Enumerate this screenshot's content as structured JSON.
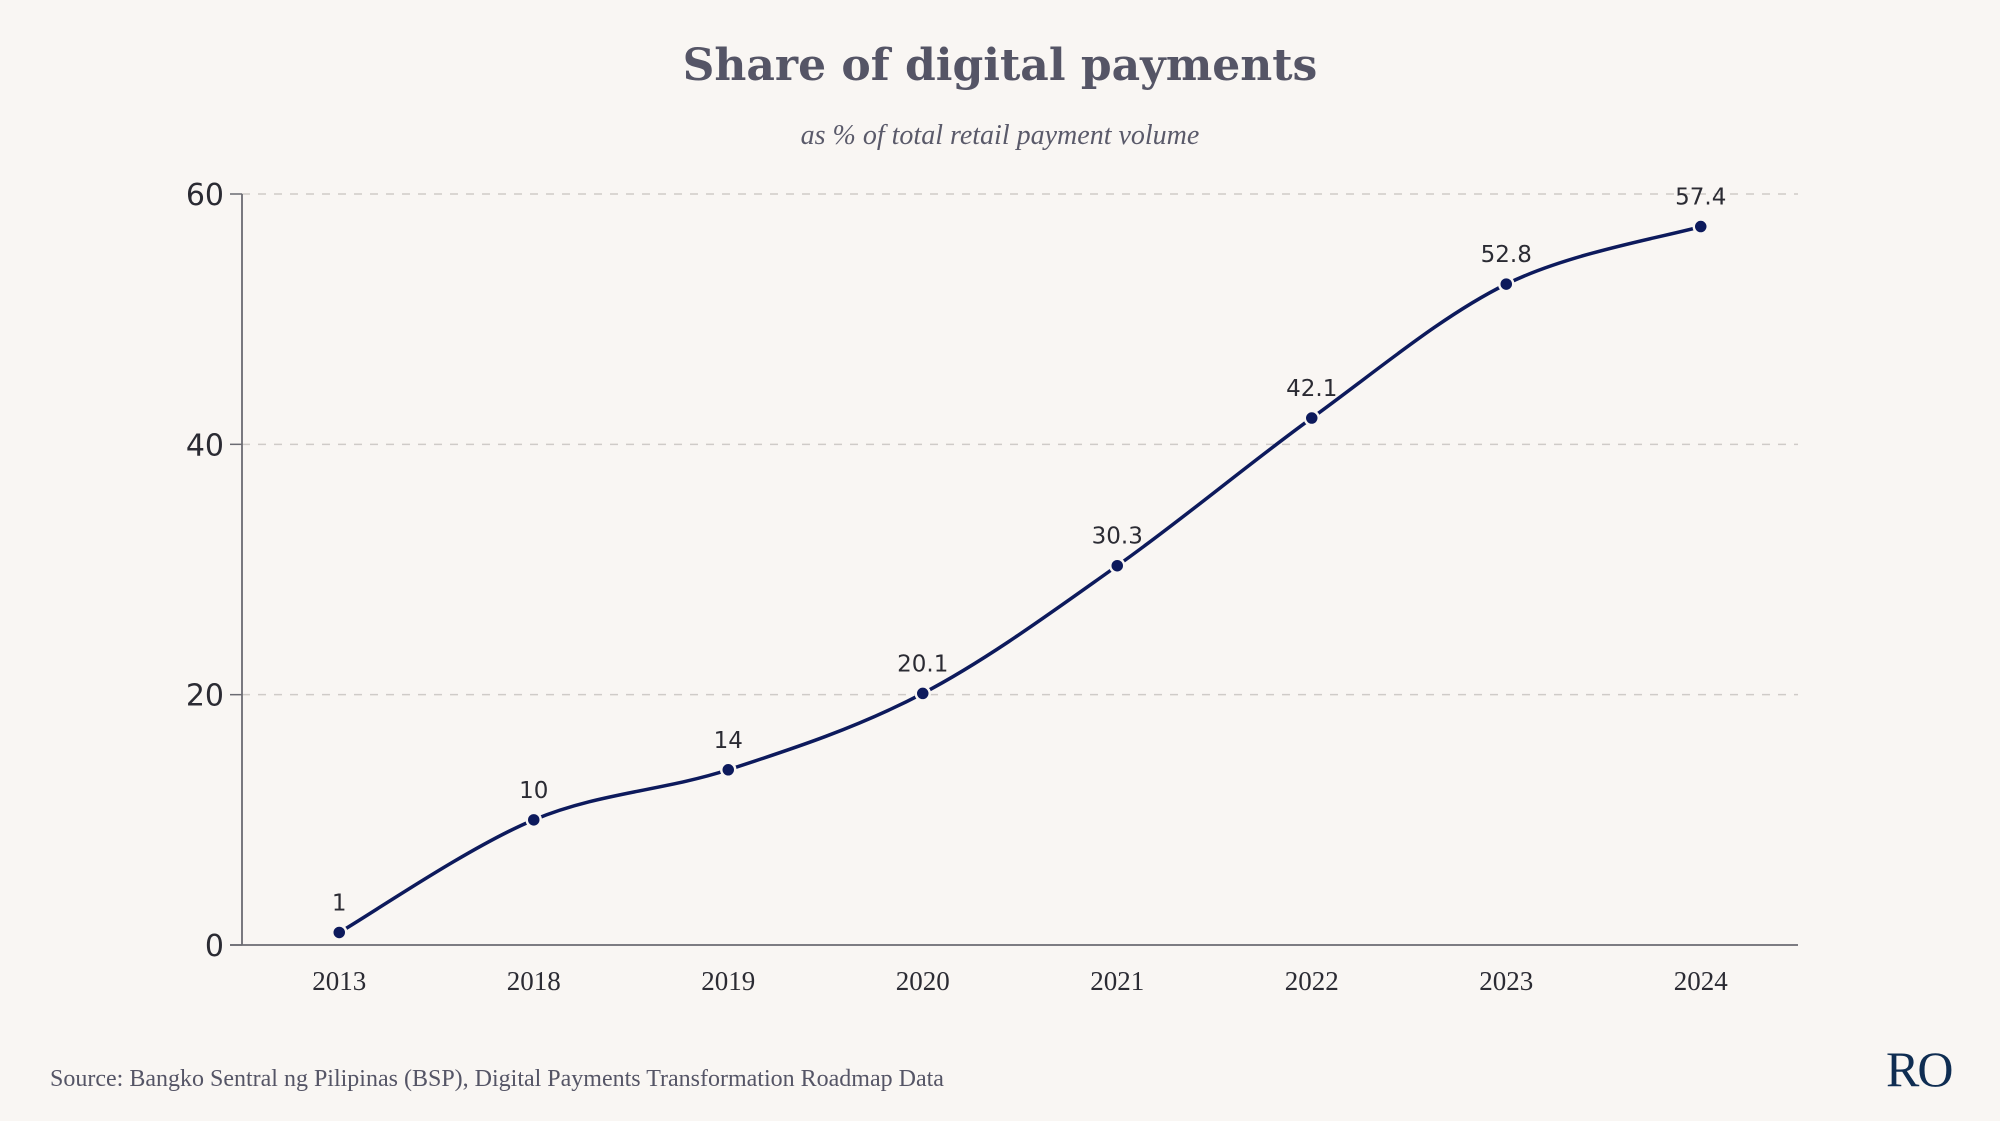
{
  "chart_data": {
    "type": "line",
    "title": "Share of digital payments",
    "subtitle": "as % of total retail payment volume",
    "xlabel": "",
    "ylabel": "",
    "categories": [
      "2013",
      "2018",
      "2019",
      "2020",
      "2021",
      "2022",
      "2023",
      "2024"
    ],
    "series": [
      {
        "name": "Share of digital payments",
        "values": [
          1,
          10,
          14,
          20.1,
          30.3,
          42.1,
          52.8,
          57.4
        ],
        "labels": [
          "1",
          "10",
          "14",
          "20.1",
          "30.3",
          "42.1",
          "52.8",
          "57.4"
        ]
      }
    ],
    "ylim": [
      0,
      60
    ],
    "yticks": [
      0,
      20,
      40,
      60
    ],
    "ytick_labels": [
      "0",
      "20",
      "40",
      "60"
    ],
    "grid": true,
    "line_color": "#0d1a5c"
  },
  "source": "Source: Bangko Sentral ng Pilipinas (BSP), Digital Payments Transformation Roadmap Data",
  "logo": "RO"
}
